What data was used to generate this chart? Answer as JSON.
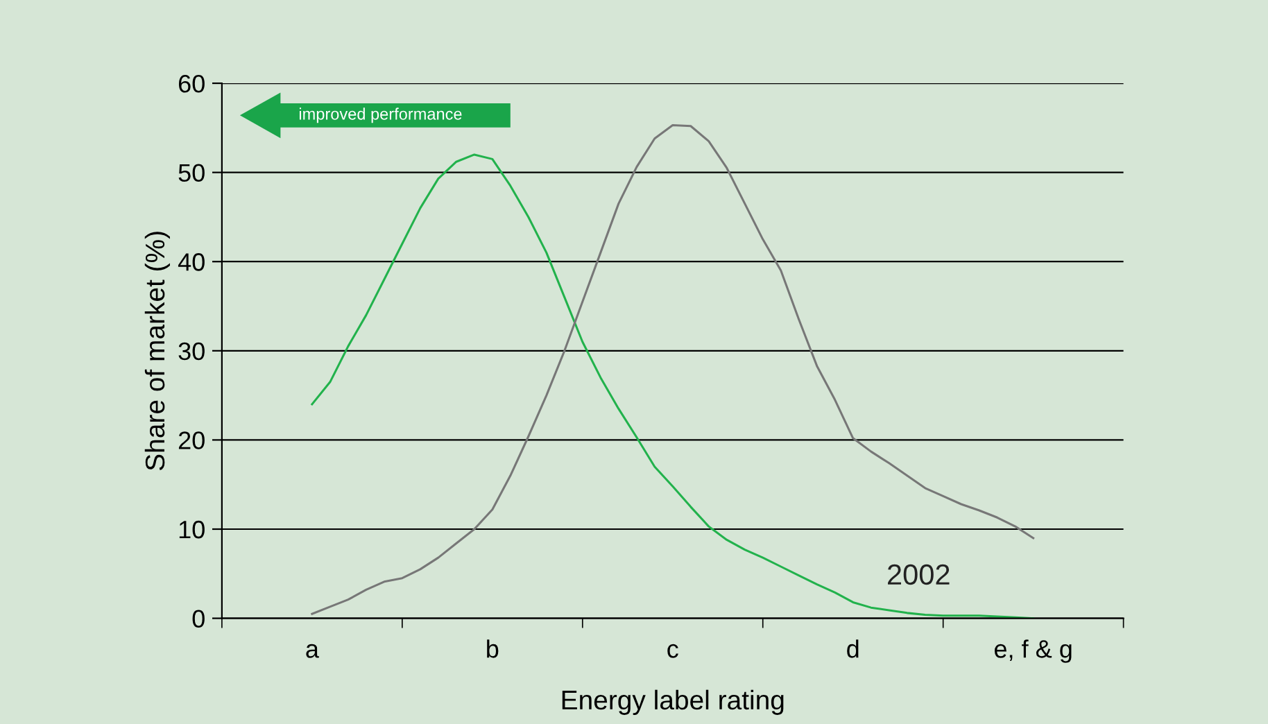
{
  "chart_data": {
    "type": "line",
    "xlabel": "Energy label rating",
    "ylabel": "Share of market (%)",
    "categories": [
      "a",
      null,
      null,
      null,
      null,
      null,
      null,
      null,
      null,
      null,
      "b",
      null,
      null,
      null,
      null,
      null,
      null,
      null,
      null,
      null,
      "c",
      null,
      null,
      null,
      null,
      null,
      null,
      null,
      null,
      null,
      "d",
      null,
      null,
      null,
      null,
      null,
      null,
      null,
      null,
      null,
      "e, f & g"
    ],
    "ylim": [
      0,
      60
    ],
    "yticks": [
      0,
      10,
      20,
      30,
      40,
      50,
      60
    ],
    "grid": "y",
    "marker": "none",
    "annotations": [
      "improved performance"
    ],
    "series": [
      {
        "name": "2002",
        "color": "#22b24c",
        "values": [
          24,
          26.5,
          30.5,
          34,
          38,
          42,
          46,
          49.3,
          51.2,
          52,
          51.5,
          48.5,
          45,
          41,
          36,
          31,
          27,
          23.5,
          20.3,
          17,
          14.8,
          12.5,
          10.3,
          8.8,
          7.7,
          6.8,
          5.8,
          4.8,
          3.8,
          2.9,
          1.8,
          1.2,
          0.9,
          0.6,
          0.4,
          0.3,
          0.3,
          0.3,
          0.2,
          0.1,
          0
        ]
      },
      {
        "color": "#777777",
        "values": [
          0.5,
          1.3,
          2.1,
          3.2,
          4.1,
          4.5,
          5.5,
          6.8,
          8.4,
          10,
          12.2,
          16,
          20.4,
          25,
          30,
          35.5,
          41,
          46.5,
          50.6,
          53.8,
          55.3,
          55.2,
          53.5,
          50.5,
          46.5,
          42.5,
          39,
          33.5,
          28.3,
          24.5,
          20.2,
          18.7,
          17.4,
          16,
          14.6,
          13.7,
          12.8,
          12.1,
          11.3,
          10.3,
          9
        ]
      }
    ]
  }
}
